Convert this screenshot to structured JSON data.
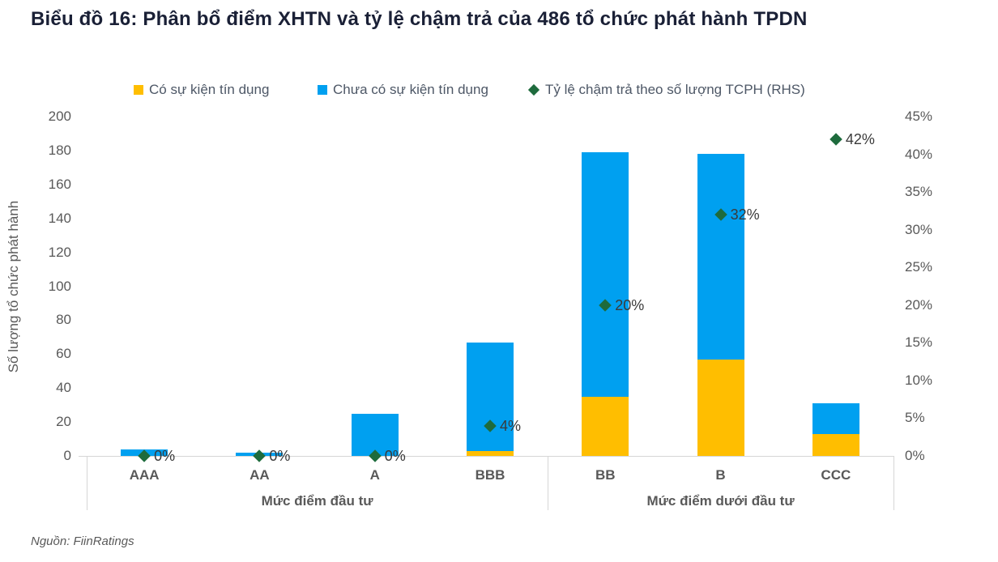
{
  "title": "Biểu đồ 16: Phân bổ điểm XHTN và tỷ lệ chậm trả của 486 tổ chức phát hành TPDN",
  "source": "Nguồn: FiinRatings",
  "colors": {
    "credit_event": "#FFBE00",
    "no_credit_event": "#00A0F0",
    "delinquency": "#1E6B3D",
    "title_text": "#1A2036",
    "axis_text": "#595959",
    "legend_text": "#4D5766",
    "label_text": "#3A3A3A",
    "axis_line": "#D6D6D6"
  },
  "legend": [
    {
      "label": "Có sự kiện tín dụng",
      "marker": "square",
      "color_key": "credit_event"
    },
    {
      "label": "Chưa có sự kiện tín dụng",
      "marker": "square",
      "color_key": "no_credit_event"
    },
    {
      "label": "Tỷ lệ chậm trả theo số lượng TCPH (RHS)",
      "marker": "diamond",
      "color_key": "delinquency"
    }
  ],
  "chart_data": {
    "type": "bar",
    "subtype": "stacked-bar-with-scatter",
    "categories": [
      "AAA",
      "AA",
      "A",
      "BBB",
      "BB",
      "B",
      "CCC"
    ],
    "series": [
      {
        "name": "Có sự kiện tín dụng",
        "type": "bar",
        "axis": "left",
        "color_key": "credit_event",
        "values": [
          0,
          0,
          0,
          3,
          35,
          57,
          13
        ]
      },
      {
        "name": "Chưa có sự kiện tín dụng",
        "type": "bar",
        "axis": "left",
        "color_key": "no_credit_event",
        "values": [
          4,
          2,
          25,
          64,
          144,
          121,
          18
        ]
      },
      {
        "name": "Tỷ lệ chậm trả theo số lượng TCPH (RHS)",
        "type": "scatter",
        "axis": "right",
        "color_key": "delinquency",
        "values": [
          0,
          0,
          0,
          4,
          20,
          32,
          42
        ],
        "labels": [
          "0%",
          "0%",
          "0%",
          "4%",
          "20%",
          "32%",
          "42%"
        ]
      }
    ],
    "ylabel_left": "Số lượng tổ chức phát hành",
    "left_axis": {
      "min": 0,
      "max": 200,
      "step": 20
    },
    "right_axis": {
      "min": 0,
      "max": 45,
      "step": 5,
      "suffix": "%"
    },
    "group_labels": [
      {
        "label": "Mức điểm đầu tư",
        "from": 0,
        "to": 3
      },
      {
        "label": "Mức điểm dưới đầu tư",
        "from": 4,
        "to": 6
      }
    ],
    "grid": false,
    "legend_position": "top"
  }
}
